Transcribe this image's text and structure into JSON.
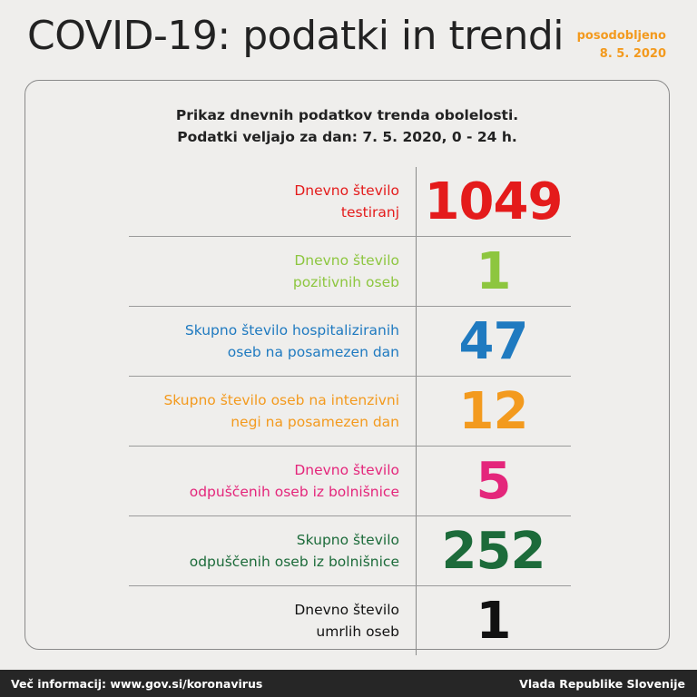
{
  "header": {
    "title": "COVID-19: podatki in trendi",
    "updated_label": "posodobljeno",
    "updated_date": "8. 5. 2020"
  },
  "card": {
    "subtitle_line1": "Prikaz dnevnih podatkov trenda obolelosti.",
    "subtitle_line2": "Podatki veljajo za dan: 7. 5. 2020, 0 - 24 h."
  },
  "rows": [
    {
      "label_line1": "Dnevno število",
      "label_line2": "testiranj",
      "value": "1049",
      "color": "#e41b1b"
    },
    {
      "label_line1": "Dnevno število",
      "label_line2": "pozitivnih oseb",
      "value": "1",
      "color": "#8dc63f"
    },
    {
      "label_line1": "Skupno število hospitaliziranih",
      "label_line2": "oseb na posamezen dan",
      "value": "47",
      "color": "#1f7ac0"
    },
    {
      "label_line1": "Skupno število oseb na intenzivni",
      "label_line2": "negi na posamezen dan",
      "value": "12",
      "color": "#f39a1e"
    },
    {
      "label_line1": "Dnevno število",
      "label_line2": "odpuščenih oseb iz bolnišnice",
      "value": "5",
      "color": "#e4267b"
    },
    {
      "label_line1": "Skupno število",
      "label_line2": "odpuščenih oseb iz bolnišnice",
      "value": "252",
      "color": "#1c6b3a"
    },
    {
      "label_line1": "Dnevno število",
      "label_line2": "umrlih oseb",
      "value": "1",
      "color": "#111111"
    }
  ],
  "footer": {
    "more_info": "Več informacij: www.gov.si/koronavirus",
    "publisher": "Vlada Republike Slovenije"
  }
}
